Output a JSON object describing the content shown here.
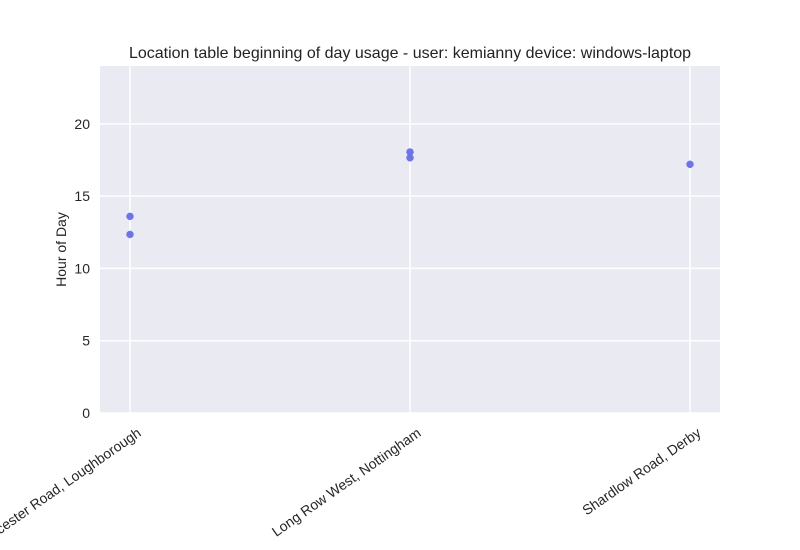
{
  "chart_data": {
    "type": "scatter",
    "title": "Location table beginning of day usage -  user: kemianny device: windows-laptop",
    "xlabel": "",
    "ylabel": "Hour of Day",
    "categories": [
      "Leicester Road, Loughborough",
      "Long Row West, Nottingham",
      "Shardlow Road, Derby"
    ],
    "yticks": [
      0,
      5,
      10,
      15,
      20
    ],
    "ylim": [
      0,
      24
    ],
    "grid": true,
    "point_color": "#6c74e8",
    "background_color": "#eaeaf2",
    "grid_color": "#ffffff",
    "points": [
      {
        "category": "Leicester Road, Loughborough",
        "y": 13.6
      },
      {
        "category": "Leicester Road, Loughborough",
        "y": 12.35
      },
      {
        "category": "Long Row West, Nottingham",
        "y": 18.05
      },
      {
        "category": "Long Row West, Nottingham",
        "y": 17.65
      },
      {
        "category": "Shardlow Road, Derby",
        "y": 17.2
      }
    ]
  }
}
